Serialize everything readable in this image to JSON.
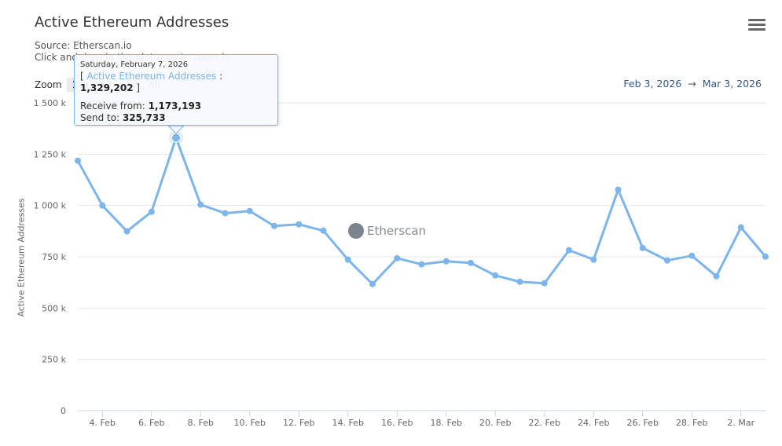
{
  "header": {
    "title": "Active Ethereum Addresses",
    "source": "Source: Etherscan.io",
    "hint": "Click and drag in the plot area to zoom in",
    "menu_icon": "hamburger-menu-icon"
  },
  "zoom": {
    "label": "Zoom",
    "options": [
      {
        "label": "1m",
        "active": true
      },
      {
        "label": "6m",
        "active": false
      },
      {
        "label": "1y",
        "active": false
      },
      {
        "label": "All",
        "active": false
      }
    ]
  },
  "range": {
    "from": "Feb 3, 2026",
    "arrow": "→",
    "to": "Mar 3, 2026"
  },
  "tooltip": {
    "date": "Saturday, February 7, 2026",
    "open_bracket": "[ ",
    "series_name": "Active Ethereum Addresses",
    "separator": " : ",
    "value": "1,329,202",
    "close_bracket": " ]",
    "receive_label": "Receive from: ",
    "receive_value": "1,173,193",
    "send_label": "Send to: ",
    "send_value": "325,733"
  },
  "watermark": "Etherscan",
  "colors": {
    "series": "#7cb5ec",
    "grid": "#e6e6e6",
    "axis_text": "#666666",
    "range_text": "#34568b"
  },
  "chart_data": {
    "type": "line",
    "title": "Active Ethereum Addresses",
    "subtitle": "Source: Etherscan.io",
    "xlabel": "",
    "ylabel": "Active Ethereum Addresses",
    "ylim": [
      0,
      1500000
    ],
    "yticks": [
      "0",
      "250 k",
      "500 k",
      "750 k",
      "1 000 k",
      "1 250 k",
      "1 500 k"
    ],
    "xticks": [
      "4. Feb",
      "6. Feb",
      "8. Feb",
      "10. Feb",
      "12. Feb",
      "14. Feb",
      "16. Feb",
      "18. Feb",
      "20. Feb",
      "22. Feb",
      "24. Feb",
      "26. Feb",
      "28. Feb",
      "2. Mar"
    ],
    "grid": true,
    "legend": "none",
    "x": [
      "Feb 3",
      "Feb 4",
      "Feb 5",
      "Feb 6",
      "Feb 7",
      "Feb 8",
      "Feb 9",
      "Feb 10",
      "Feb 11",
      "Feb 12",
      "Feb 13",
      "Feb 14",
      "Feb 15",
      "Feb 16",
      "Feb 17",
      "Feb 18",
      "Feb 19",
      "Feb 20",
      "Feb 21",
      "Feb 22",
      "Feb 23",
      "Feb 24",
      "Feb 25",
      "Feb 26",
      "Feb 27",
      "Feb 28",
      "Mar 1",
      "Mar 2",
      "Mar 3"
    ],
    "series": [
      {
        "name": "Active Ethereum Addresses",
        "values": [
          1218000,
          1000000,
          874000,
          969000,
          1329202,
          1004000,
          962000,
          973000,
          900000,
          908000,
          877000,
          736000,
          617000,
          743000,
          713000,
          728000,
          720000,
          659000,
          628000,
          621000,
          782000,
          736000,
          1077000,
          793000,
          732000,
          755000,
          655000,
          893000,
          751000
        ]
      }
    ],
    "highlighted_point": {
      "x": "Feb 7",
      "value": 1329202,
      "receive_from": 1173193,
      "send_to": 325733
    }
  }
}
